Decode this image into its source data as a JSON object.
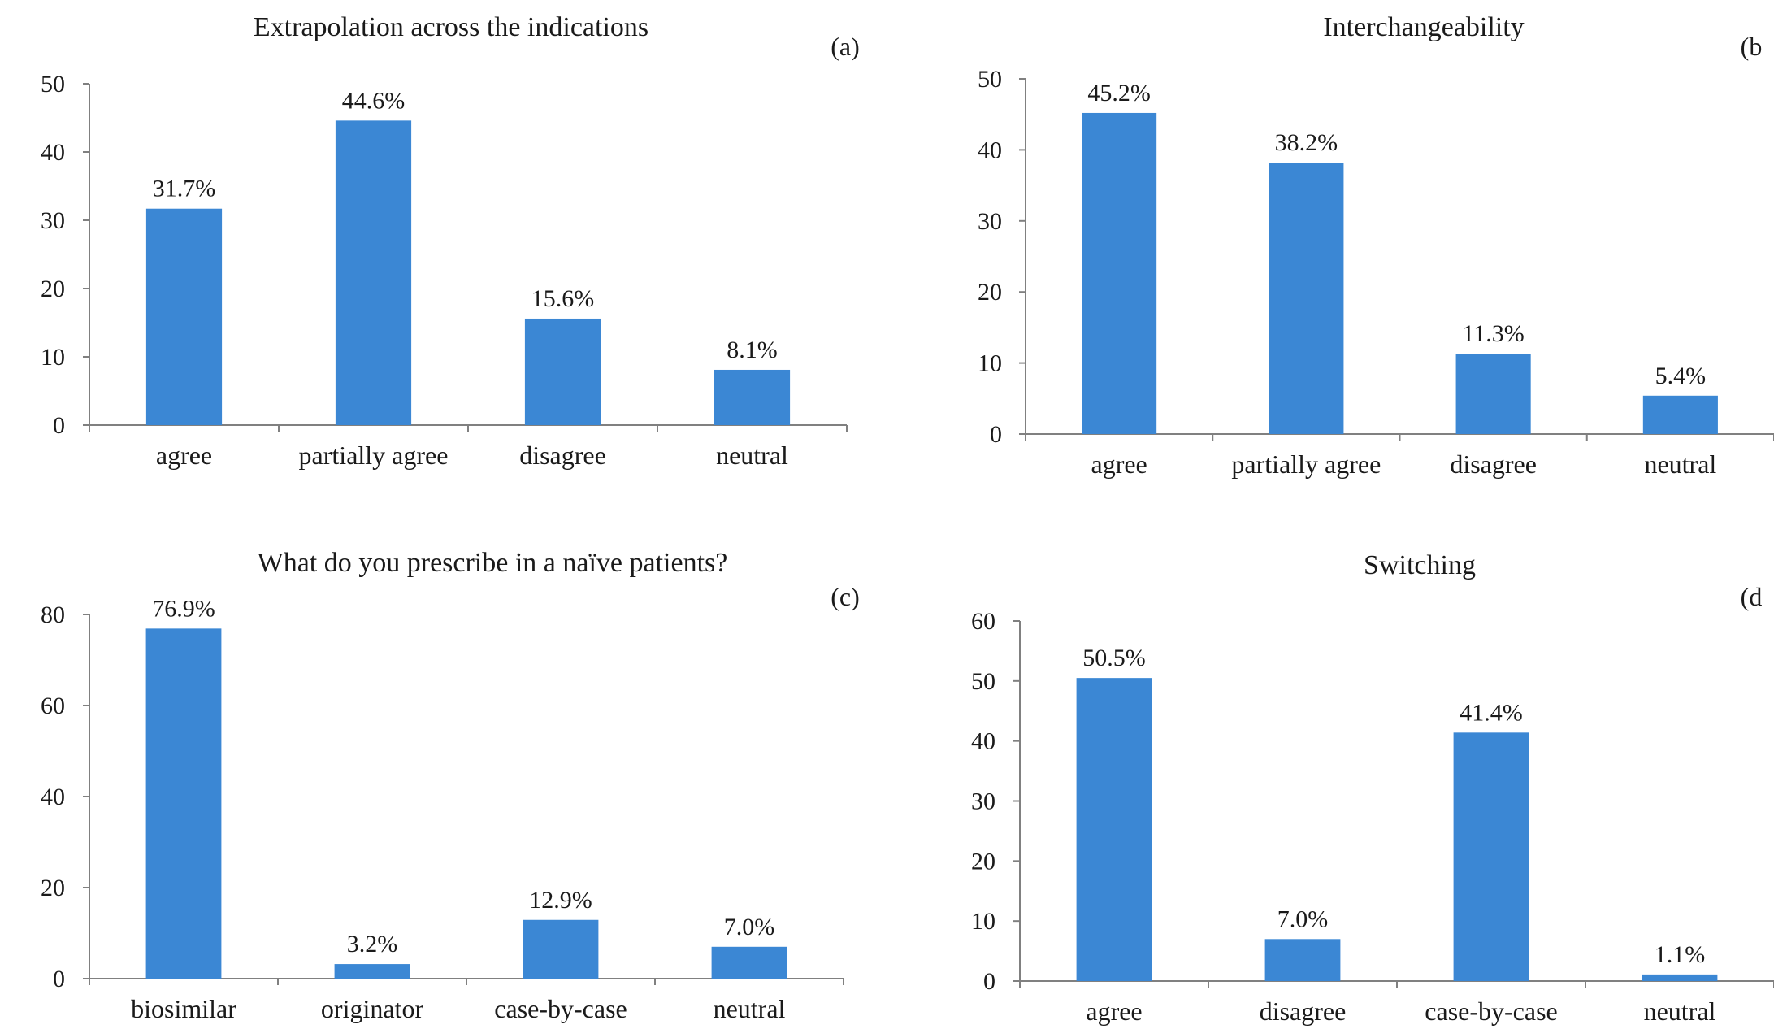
{
  "colors": {
    "bar": "#3b87d4",
    "axis": "#808080",
    "text": "#1a1a1a"
  },
  "chart_data": [
    {
      "type": "bar",
      "title": "Extrapolation  across the indications",
      "panel_label": "(a)",
      "categories": [
        "agree",
        "partially agree",
        "disagree",
        "neutral"
      ],
      "values": [
        31.7,
        44.6,
        15.6,
        8.1
      ],
      "data_labels": [
        "31.7%",
        "44.6%",
        "15.6%",
        "8.1%"
      ],
      "ylim": [
        0,
        50
      ],
      "yticks": [
        0,
        10,
        20,
        30,
        40,
        50
      ],
      "grid": false
    },
    {
      "type": "bar",
      "title": "Interchangeability",
      "panel_label": "(b",
      "categories": [
        "agree",
        "partially agree",
        "disagree",
        "neutral"
      ],
      "values": [
        45.2,
        38.2,
        11.3,
        5.4
      ],
      "data_labels": [
        "45.2%",
        "38.2%",
        "11.3%",
        "5.4%"
      ],
      "ylim": [
        0,
        50
      ],
      "yticks": [
        0,
        10,
        20,
        30,
        40,
        50
      ],
      "grid": false
    },
    {
      "type": "bar",
      "title": "What do you prescribe in a naïve patients?",
      "panel_label": "(c)",
      "categories": [
        "biosimilar",
        "originator",
        "case-by-case",
        "neutral"
      ],
      "values": [
        76.9,
        3.2,
        12.9,
        7.0
      ],
      "data_labels": [
        "76.9%",
        "3.2%",
        "12.9%",
        "7.0%"
      ],
      "ylim": [
        0,
        80
      ],
      "yticks": [
        0,
        20,
        40,
        60,
        80
      ],
      "grid": false
    },
    {
      "type": "bar",
      "title": "Switching",
      "panel_label": "(d",
      "categories": [
        "agree",
        "disagree",
        "case-by-case",
        "neutral"
      ],
      "values": [
        50.5,
        7.0,
        41.4,
        1.1
      ],
      "data_labels": [
        "50.5%",
        "7.0%",
        "41.4%",
        "1.1%"
      ],
      "ylim": [
        0,
        60
      ],
      "yticks": [
        0,
        10,
        20,
        30,
        40,
        50,
        60
      ],
      "grid": false
    }
  ]
}
